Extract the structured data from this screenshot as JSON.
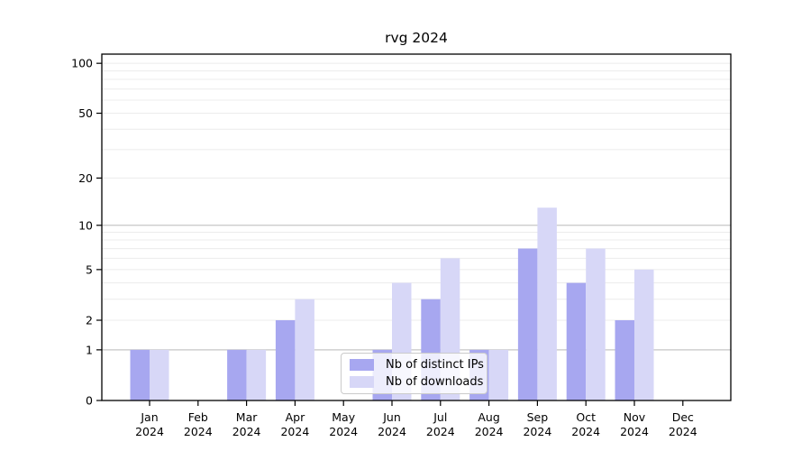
{
  "chart_data": {
    "type": "bar",
    "title": "rvg 2024",
    "year_label": "2024",
    "categories": [
      "Jan",
      "Feb",
      "Mar",
      "Apr",
      "May",
      "Jun",
      "Jul",
      "Aug",
      "Sep",
      "Oct",
      "Nov",
      "Dec"
    ],
    "series": [
      {
        "name": "Nb of distinct IPs",
        "key": "distinct-ips",
        "color": "#a7a7f0",
        "values": [
          1,
          0,
          1,
          2,
          0,
          1,
          3,
          1,
          7,
          4,
          2,
          0
        ]
      },
      {
        "name": "Nb of downloads",
        "key": "downloads",
        "color": "#d7d7f7",
        "values": [
          1,
          0,
          1,
          3,
          0,
          4,
          6,
          1,
          13,
          7,
          5,
          0
        ]
      }
    ],
    "y_axis": {
      "scale": "log1p",
      "ticks": [
        0,
        1,
        2,
        5,
        10,
        20,
        50,
        100
      ],
      "gridlines_dark": [
        1,
        10
      ],
      "gridlines_light": [
        2,
        3,
        4,
        5,
        6,
        7,
        8,
        9,
        20,
        30,
        40,
        50,
        60,
        70,
        80,
        90,
        100
      ],
      "range": [
        0,
        115
      ]
    },
    "x_axis": {
      "label_line2": "2024"
    },
    "legend": {
      "position": "inside-bottom-center"
    },
    "colors": {
      "bar_distinct_ips": "#a7a7f0",
      "bar_downloads": "#d7d7f7",
      "grid_dark": "#c6c6c6",
      "grid_light": "#ececec",
      "spine": "#000000",
      "background": "#ffffff",
      "text": "#000000"
    },
    "grid": "on",
    "legend_position": "bottom center inside plot"
  }
}
